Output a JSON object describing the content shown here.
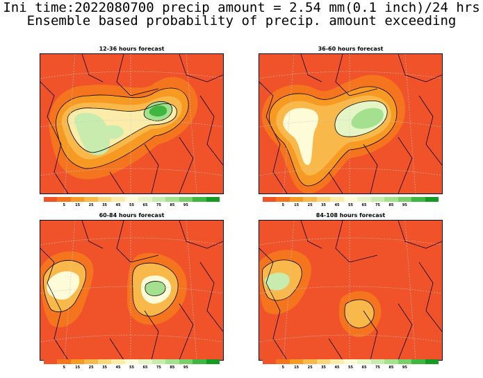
{
  "title_line1": "Ini time:2022080700 precip amount = 2.54 mm(0.1 inch)/24 hrs",
  "title_line2": "Ensemble based probability of precip. amount exceeding",
  "panels": [
    {
      "title": "12-36 hours forecast"
    },
    {
      "title": "36-60 hours forecast"
    },
    {
      "title": "60-84 hours forecast"
    },
    {
      "title": "84-108 hours forecast"
    }
  ],
  "colorbar": {
    "colors": [
      "#f0522a",
      "#f5751f",
      "#f79a24",
      "#f9b84a",
      "#fad57a",
      "#fcecaa",
      "#fdfbd8",
      "#e6f5c6",
      "#c8ecae",
      "#a4e18f",
      "#77d068",
      "#3fb63f",
      "#169a25"
    ],
    "labels": [
      "5",
      "15",
      "25",
      "35",
      "45",
      "55",
      "65",
      "75",
      "85",
      "95"
    ]
  },
  "colors": {
    "base": "#f0522a",
    "contour": "#000000",
    "grid": "#c8c8c8"
  }
}
